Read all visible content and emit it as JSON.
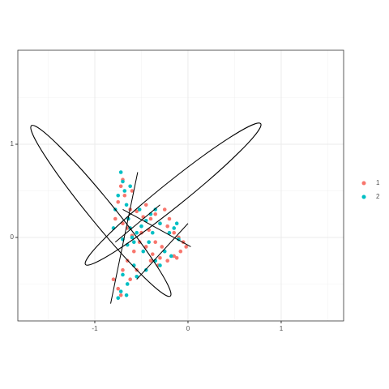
{
  "chart_data": {
    "type": "scatter",
    "xlim": [
      -1.826,
      1.67
    ],
    "ylim": [
      -0.896,
      2.009
    ],
    "xticks": [
      -1,
      0,
      1
    ],
    "yticks": [
      0,
      1
    ],
    "x_minor_ticks": [
      -1.5,
      -0.5,
      0.5,
      1.5
    ],
    "y_minor_ticks": [
      -0.5,
      0.5,
      1.5
    ],
    "grid": true,
    "legend": "right",
    "series": [
      {
        "name": "1",
        "color": "#F8766D",
        "x": [
          -0.72,
          -0.68,
          -0.75,
          -0.62,
          -0.55,
          -0.48,
          -0.4,
          -0.35,
          -0.3,
          -0.22,
          -0.15,
          -0.1,
          -0.05,
          -0.02,
          -0.08,
          -0.15,
          -0.22,
          -0.3,
          -0.38,
          -0.45,
          -0.52,
          -0.6,
          -0.65,
          -0.7,
          -0.78,
          -0.8,
          -0.75,
          -0.72,
          -0.7,
          -0.65,
          -0.58,
          -0.5,
          -0.42,
          -0.35,
          -0.28,
          -0.2,
          -0.25,
          -0.45,
          -0.6,
          -0.7,
          -0.12,
          -0.32,
          -0.55,
          -0.62,
          -0.4
        ],
        "values": [
          0.55,
          0.45,
          0.38,
          0.3,
          0.28,
          0.22,
          0.2,
          0.25,
          0.15,
          0.12,
          0.05,
          0.0,
          -0.05,
          -0.1,
          -0.15,
          -0.2,
          -0.25,
          -0.22,
          -0.18,
          -0.1,
          -0.05,
          0.02,
          0.1,
          0.15,
          0.2,
          -0.45,
          -0.55,
          -0.62,
          -0.35,
          -0.25,
          -0.15,
          0.05,
          0.08,
          -0.05,
          -0.1,
          0.2,
          0.3,
          0.35,
          0.5,
          0.62,
          -0.22,
          -0.3,
          -0.35,
          -0.45,
          -0.25
        ]
      },
      {
        "name": "2",
        "color": "#00BFC4",
        "x": [
          -0.72,
          -0.7,
          -0.68,
          -0.75,
          -0.66,
          -0.64,
          -0.62,
          -0.6,
          -0.58,
          -0.7,
          -0.65,
          -0.55,
          -0.5,
          -0.45,
          -0.4,
          -0.35,
          -0.3,
          -0.2,
          -0.15,
          -0.1,
          -0.25,
          -0.35,
          -0.45,
          -0.55,
          -0.65,
          -0.72,
          -0.75,
          -0.7,
          -0.78,
          -0.52,
          -0.48,
          -0.42,
          -0.3,
          -0.18,
          -0.12,
          -0.62,
          -0.8,
          -0.58,
          -0.38,
          -0.66
        ],
        "values": [
          0.7,
          0.6,
          0.5,
          0.45,
          0.35,
          0.2,
          0.1,
          0.0,
          -0.05,
          -0.02,
          -0.08,
          0.05,
          0.12,
          0.18,
          0.25,
          0.3,
          0.15,
          0.05,
          0.1,
          -0.02,
          -0.15,
          -0.25,
          -0.35,
          -0.42,
          -0.5,
          -0.58,
          -0.65,
          -0.4,
          0.3,
          0.3,
          -0.15,
          -0.05,
          -0.3,
          -0.2,
          0.15,
          0.55,
          0.1,
          -0.3,
          0.05,
          -0.62
        ]
      }
    ],
    "ellipses": [
      {
        "center": [
          -0.935,
          0.285
        ],
        "a": 1.18,
        "b": 0.13,
        "angle": -50.8
      },
      {
        "center": [
          -0.16,
          0.465
        ],
        "a": 1.206,
        "b": 0.13,
        "angle": 38.8
      }
    ],
    "segments": [
      {
        "x": [
          -0.54,
          -0.83
        ],
        "y": [
          0.7,
          -0.71
        ]
      },
      {
        "x": [
          -0.78,
          -0.3
        ],
        "y": [
          -0.05,
          0.35
        ]
      },
      {
        "x": [
          -0.55,
          0.0
        ],
        "y": [
          -0.45,
          0.15
        ]
      },
      {
        "x": [
          -0.7,
          0.03
        ],
        "y": [
          0.3,
          -0.1
        ]
      }
    ]
  }
}
